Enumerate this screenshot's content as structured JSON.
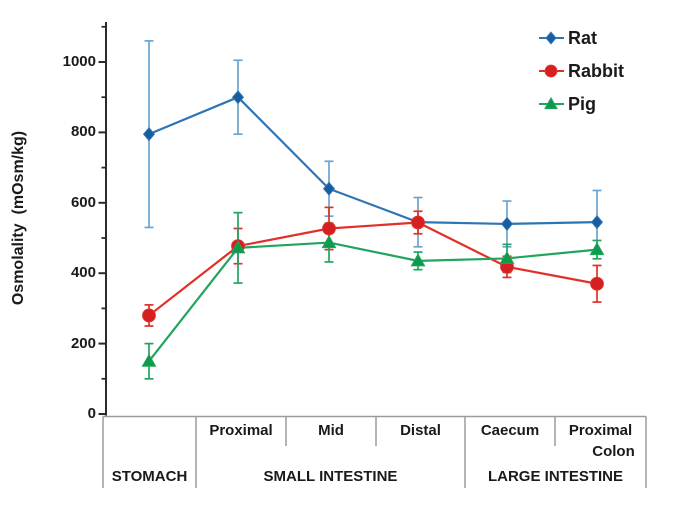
{
  "figure": {
    "y_axis_title": "Osmolality  (mOsm/kg)"
  },
  "legend": {
    "position": "top-right",
    "items": [
      {
        "label": "Rat"
      },
      {
        "label": "Rabbit"
      },
      {
        "label": "Pig"
      }
    ]
  },
  "x_axis": {
    "segment_labels": [
      {
        "line1": "Proximal"
      },
      {
        "line1": "Mid"
      },
      {
        "line1": "Distal"
      },
      {
        "line1": "Caecum"
      },
      {
        "line1": "Proximal",
        "line2": "Colon"
      }
    ],
    "organ_groups": [
      {
        "label": "STOMACH"
      },
      {
        "label": "SMALL INTESTINE"
      },
      {
        "label": "LARGE INTESTINE"
      }
    ]
  },
  "chart_data": {
    "type": "line",
    "title": "",
    "ylabel": "Osmolality (mOsm/kg)",
    "xlabel": "",
    "grid": false,
    "legend_position": "top-right",
    "yticks": [
      0,
      200,
      400,
      600,
      800,
      1000
    ],
    "ylim": [
      0,
      1115
    ],
    "categories": [
      "Stomach",
      "Small intestine - Proximal",
      "Small intestine - Mid",
      "Small intestine - Distal",
      "Caecum",
      "Proximal Colon"
    ],
    "axis_color": "#2b2b2b",
    "table_line_color": "#9b9b9b",
    "series": [
      {
        "name": "Rat",
        "marker": "diamond",
        "color": "#2e75b5",
        "marker_color": "#1a5d9f",
        "error_color": "#6aa5d2",
        "values": [
          795,
          900,
          640,
          545,
          540,
          545
        ],
        "errors": [
          265,
          105,
          78,
          70,
          65,
          90
        ]
      },
      {
        "name": "Rabbit",
        "marker": "circle",
        "color": "#e03028",
        "marker_color": "#d42020",
        "error_color": "#e03028",
        "values": [
          280,
          477,
          527,
          544,
          418,
          370
        ],
        "errors": [
          30,
          50,
          60,
          32,
          30,
          52
        ]
      },
      {
        "name": "Pig",
        "marker": "triangle",
        "color": "#21a55e",
        "marker_color": "#0d9a4c",
        "error_color": "#21a55e",
        "values": [
          150,
          472,
          487,
          435,
          442,
          467
        ],
        "errors": [
          50,
          100,
          55,
          25,
          40,
          26
        ]
      }
    ]
  }
}
